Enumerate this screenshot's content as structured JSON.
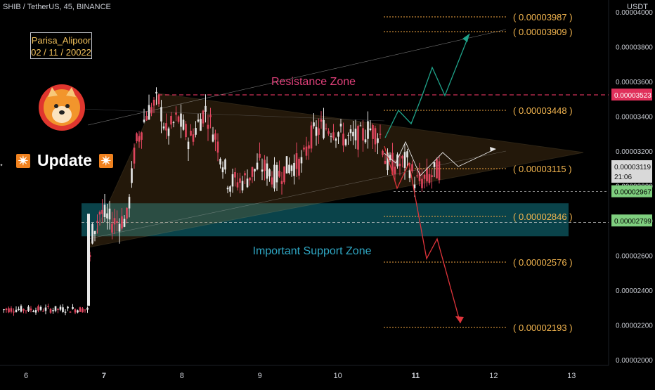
{
  "header": {
    "title": "SHIB / TetherUS, 45, BINANCE",
    "currency": "USDT"
  },
  "watermark": {
    "author": "Parisa_Alipoor",
    "date": "02 / 11 / 20022"
  },
  "update_label": "Update",
  "annotations": {
    "resistance_zone": "Resistance Zone",
    "support_zone": "Important Support Zone"
  },
  "colors": {
    "up_candle": "#e8e8e8",
    "down_candle": "#e0455e",
    "resistance": "#ff3b6b",
    "support_zone": "#0e5a63",
    "target_line": "#f5a742",
    "bull_arrow": "#1fa38a",
    "bear_arrow": "#e0343b",
    "accent": "#f0821f"
  },
  "chart_data": {
    "type": "candlestick",
    "symbol": "SHIB / TetherUS",
    "interval": "45",
    "exchange": "BINANCE",
    "x_tick_labels": [
      "6",
      "7",
      "8",
      "9",
      "10",
      "11",
      "12",
      "13"
    ],
    "y_tick_labels": [
      "0.00002000",
      "0.00002200",
      "0.00002400",
      "0.00002600",
      "0.00002800",
      "0.00003000",
      "0.00003200",
      "0.00003400",
      "0.00003600",
      "0.00003800",
      "0.00004000"
    ],
    "ylim": [
      1.99e-05,
      4.05e-05
    ],
    "target_levels": [
      "0.00003987",
      "0.00003909",
      "0.00003448",
      "0.00003115",
      "0.00002846",
      "0.00002576",
      "0.00002193"
    ],
    "price_badges": {
      "resistance": "0.00003523",
      "current": "0.00003119",
      "countdown": "21:06",
      "level_a": "0.00002967",
      "level_b": "0.00002799"
    },
    "resistance_level": 3.523e-05,
    "support_zone": [
      2.71e-05,
      2.9e-05
    ],
    "path": [
      [
        5.7,
        2.29e-05
      ],
      [
        6.8,
        2.29e-05
      ],
      [
        6.83,
        2.7e-05
      ],
      [
        6.95,
        2.85e-05
      ],
      [
        7.1,
        2.79e-05
      ],
      [
        7.3,
        2.81e-05
      ],
      [
        7.4,
        3.22e-05
      ],
      [
        7.55,
        3.42e-05
      ],
      [
        7.7,
        3.49e-05
      ],
      [
        7.8,
        3.3e-05
      ],
      [
        7.95,
        3.39e-05
      ],
      [
        8.1,
        3.26e-05
      ],
      [
        8.3,
        3.44e-05
      ],
      [
        8.45,
        3.26e-05
      ],
      [
        8.6,
        3.02e-05
      ],
      [
        8.8,
        3.03e-05
      ],
      [
        9.0,
        3.12e-05
      ],
      [
        9.2,
        3.05e-05
      ],
      [
        9.4,
        3.12e-05
      ],
      [
        9.55,
        3.13e-05
      ],
      [
        9.65,
        3.28e-05
      ],
      [
        9.8,
        3.34e-05
      ],
      [
        9.95,
        3.33e-05
      ],
      [
        10.1,
        3.27e-05
      ],
      [
        10.3,
        3.28e-05
      ],
      [
        10.4,
        3.33e-05
      ],
      [
        10.55,
        3.29e-05
      ],
      [
        10.62,
        3.13e-05
      ],
      [
        10.75,
        3.12e-05
      ],
      [
        10.9,
        3.14e-05
      ],
      [
        11.0,
        3.02e-05
      ],
      [
        11.15,
        3.04e-05
      ],
      [
        11.3,
        3.1e-05
      ],
      [
        11.37,
        3.12e-05
      ]
    ]
  }
}
